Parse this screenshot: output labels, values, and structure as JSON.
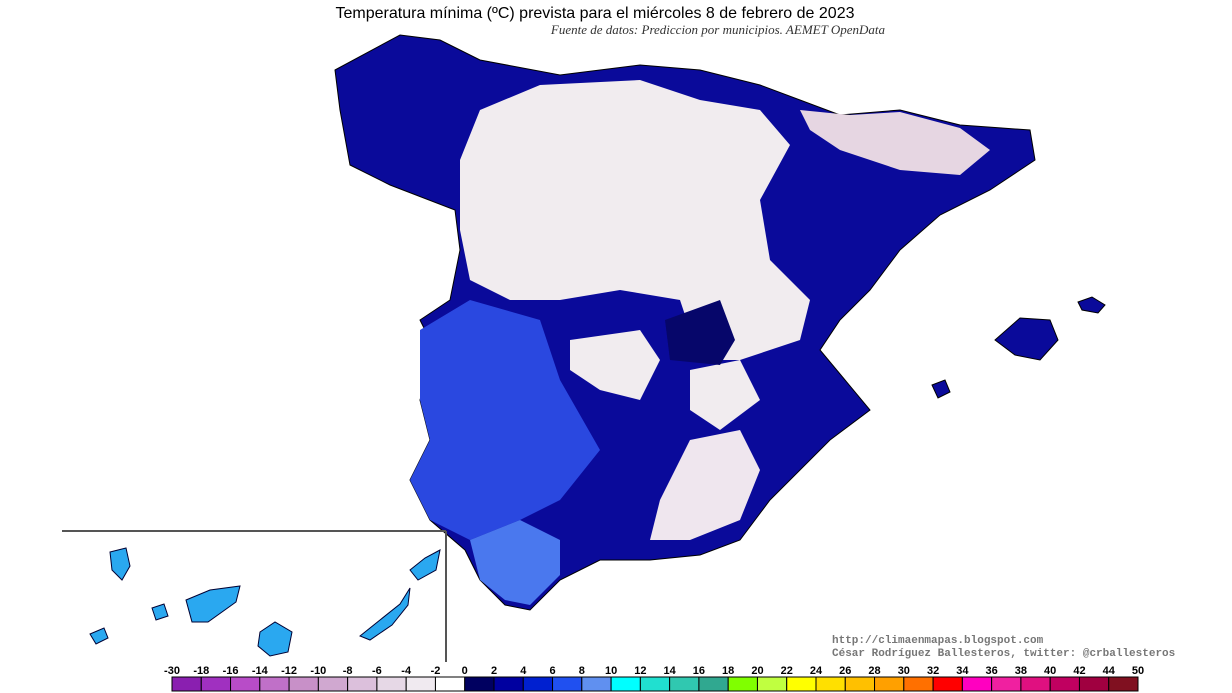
{
  "title": "Temperatura mínima (ºC) prevista para el miércoles 8 de febrero de 2023",
  "subtitle": "Fuente de datos: Prediccion por municipios. AEMET OpenData",
  "credits": [
    "http://climaenmapas.blogspot.com",
    "César Rodríguez Ballesteros, twitter: @crballesteros"
  ],
  "legend": {
    "ticks": [
      -30,
      -18,
      -16,
      -14,
      -12,
      -10,
      -8,
      -6,
      -4,
      -2,
      0,
      2,
      4,
      6,
      8,
      10,
      12,
      14,
      16,
      18,
      20,
      22,
      24,
      26,
      28,
      30,
      32,
      34,
      36,
      38,
      40,
      42,
      44,
      50
    ],
    "colors": [
      "#8a1fb0",
      "#a030c0",
      "#b84cc8",
      "#c070c8",
      "#c890c8",
      "#d0a8d0",
      "#dcc0dc",
      "#e6d8e6",
      "#f0eaf0",
      "#ffffff",
      "#000060",
      "#0000a0",
      "#0020d0",
      "#2050f0",
      "#6090f0",
      "#00ffff",
      "#20e0d0",
      "#30c8b0",
      "#30a890",
      "#80ff00",
      "#c0ff40",
      "#ffff00",
      "#ffe000",
      "#ffc000",
      "#ffa000",
      "#ff7000",
      "#ff0000",
      "#ff00c0",
      "#f020a0",
      "#e01080",
      "#c00060",
      "#a00040",
      "#801020"
    ]
  }
}
